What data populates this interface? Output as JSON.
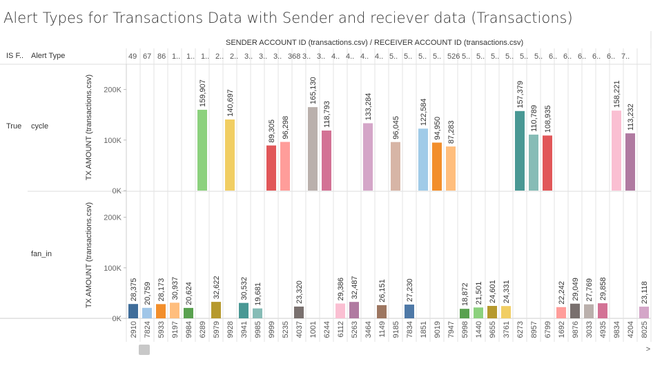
{
  "title": "Alert Types for Transactions Data with Sender and reciever data (Transactions)",
  "column_header": "SENDER ACCOUNT ID (transactions.csv) / RECEIVER ACCOUNT ID (transactions.csv)",
  "row_headers": {
    "is_fraud": "IS F..",
    "alert_type": "Alert Type"
  },
  "rows": [
    {
      "is_fraud": "True",
      "alert_type": "cycle"
    },
    {
      "is_fraud": "",
      "alert_type": "fan_in"
    }
  ],
  "scroll": {
    "left": "◂",
    "right": ">"
  },
  "chart_data": {
    "type": "bar",
    "y_axis_label": "TX AMOUNT (transactions.csv)",
    "y_ticks": [
      "0K",
      "100K",
      "200K"
    ],
    "ylim": [
      0,
      250000
    ],
    "sender_ids": [
      "49",
      "67",
      "86",
      "1..",
      "1..",
      "1..",
      "2..",
      "2..",
      "3..",
      "3..",
      "3..",
      "368",
      "3..",
      "3..",
      "4..",
      "4..",
      "4..",
      "4..",
      "5..",
      "5..",
      "5..",
      "5..",
      "526",
      "5..",
      "5..",
      "5..",
      "5..",
      "5..",
      "5..",
      "6..",
      "6..",
      "6..",
      "6..",
      "6..",
      "7.."
    ],
    "receiver_ids": [
      "2910",
      "7824",
      "5933",
      "9197",
      "9984",
      "6289",
      "5979",
      "9928",
      "3941",
      "9985",
      "9999",
      "5235",
      "4037",
      "1001",
      "6244",
      "6112",
      "5263",
      "3464",
      "1149",
      "9185",
      "7834",
      "1851",
      "9019",
      "7947",
      "5998",
      "1440",
      "9655",
      "3761",
      "6273",
      "8957",
      "6799",
      "1692",
      "9876",
      "3033",
      "4935",
      "9834",
      "4204",
      "8025"
    ],
    "series": [
      {
        "name": "cycle",
        "values": [
          null,
          null,
          null,
          null,
          null,
          159907,
          null,
          140697,
          null,
          null,
          89305,
          96298,
          null,
          165130,
          118793,
          null,
          null,
          133284,
          null,
          96045,
          null,
          122584,
          94950,
          87283,
          null,
          null,
          null,
          null,
          157379,
          110789,
          108935,
          null,
          null,
          null,
          null,
          158221,
          113232,
          null
        ],
        "labels": [
          "",
          "",
          "",
          "",
          "",
          "159,907",
          "",
          "140,697",
          "",
          "",
          "89,305",
          "96,298",
          "",
          "165,130",
          "118,793",
          "",
          "",
          "133,284",
          "",
          "96,045",
          "",
          "122,584",
          "94,950",
          "87,283",
          "",
          "",
          "",
          "",
          "157,379",
          "110,789",
          "108,935",
          "",
          "",
          "",
          "",
          "158,221",
          "113,232",
          ""
        ]
      },
      {
        "name": "fan_in",
        "values": [
          28375,
          20759,
          28173,
          30937,
          20624,
          null,
          32622,
          null,
          30532,
          19681,
          null,
          null,
          23320,
          null,
          null,
          29386,
          32487,
          null,
          26151,
          null,
          27230,
          null,
          null,
          null,
          18872,
          21501,
          24601,
          24331,
          null,
          null,
          null,
          22242,
          29049,
          27769,
          29858,
          null,
          null,
          23118
        ],
        "labels": [
          "28,375",
          "20,759",
          "28,173",
          "30,937",
          "20,624",
          "",
          "32,622",
          "",
          "30,532",
          "19,681",
          "",
          "",
          "23,320",
          "",
          "",
          "29,386",
          "32,487",
          "",
          "26,151",
          "",
          "27,230",
          "",
          "",
          "",
          "18,872",
          "21,501",
          "24,601",
          "24,331",
          "",
          "",
          "",
          "22,242",
          "29,049",
          "27,769",
          "29,858",
          "",
          "",
          "23,118"
        ]
      }
    ],
    "colors": [
      "#3f6d9a",
      "#a0c6e8",
      "#f28e2b",
      "#ffbe7d",
      "#59a14f",
      "#8cd17d",
      "#b6992d",
      "#f1ce63",
      "#499894",
      "#86bcb6",
      "#e15759",
      "#ff9d9a",
      "#79706e",
      "#bab0ac",
      "#d37295",
      "#fabfd2",
      "#b07aa1",
      "#d4a6c8",
      "#9d7660",
      "#d7b5a6",
      "#4e79a7",
      "#a0cbe8",
      "#f28e2b",
      "#ffbe7d",
      "#59a14f",
      "#8cd17d",
      "#b6992d",
      "#f1ce63",
      "#499894",
      "#86bcb6",
      "#e15759",
      "#ff9d9a",
      "#79706e",
      "#bab0ac",
      "#d37295",
      "#fabfd2",
      "#b07aa1",
      "#d4a6c8"
    ]
  }
}
